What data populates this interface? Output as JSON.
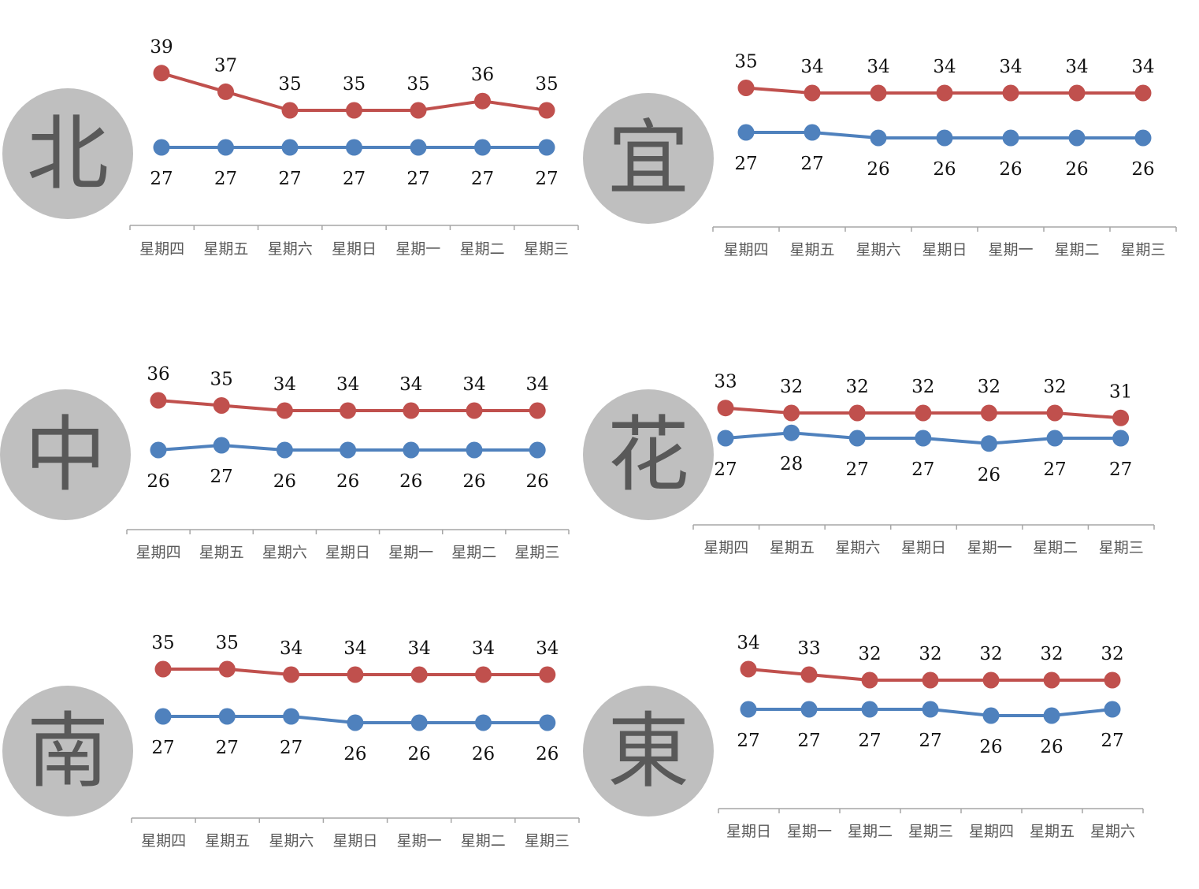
{
  "colors": {
    "high": "#c0504d",
    "low": "#4f81bd",
    "axis": "#a6a6a6",
    "badge": "#bfbfbf",
    "badge_text": "#595959"
  },
  "chart_data": [
    {
      "type": "line",
      "region": "北",
      "categories": [
        "星期四",
        "星期五",
        "星期六",
        "星期日",
        "星期一",
        "星期二",
        "星期三"
      ],
      "series": [
        {
          "values": [
            39,
            37,
            35,
            35,
            35,
            36,
            35
          ]
        },
        {
          "values": [
            27,
            27,
            27,
            27,
            27,
            27,
            27
          ]
        }
      ]
    },
    {
      "type": "line",
      "region": "宜",
      "categories": [
        "星期四",
        "星期五",
        "星期六",
        "星期日",
        "星期一",
        "星期二",
        "星期三"
      ],
      "series": [
        {
          "values": [
            35,
            34,
            34,
            34,
            34,
            34,
            34
          ]
        },
        {
          "values": [
            27,
            27,
            26,
            26,
            26,
            26,
            26
          ]
        }
      ]
    },
    {
      "type": "line",
      "region": "中",
      "categories": [
        "星期四",
        "星期五",
        "星期六",
        "星期日",
        "星期一",
        "星期二",
        "星期三"
      ],
      "series": [
        {
          "values": [
            36,
            35,
            34,
            34,
            34,
            34,
            34
          ]
        },
        {
          "values": [
            26,
            27,
            26,
            26,
            26,
            26,
            26
          ]
        }
      ]
    },
    {
      "type": "line",
      "region": "花",
      "categories": [
        "星期四",
        "星期五",
        "星期六",
        "星期日",
        "星期一",
        "星期二",
        "星期三"
      ],
      "series": [
        {
          "values": [
            33,
            32,
            32,
            32,
            32,
            32,
            31
          ]
        },
        {
          "values": [
            27,
            28,
            27,
            27,
            26,
            27,
            27
          ]
        }
      ]
    },
    {
      "type": "line",
      "region": "南",
      "categories": [
        "星期四",
        "星期五",
        "星期六",
        "星期日",
        "星期一",
        "星期二",
        "星期三"
      ],
      "series": [
        {
          "values": [
            35,
            35,
            34,
            34,
            34,
            34,
            34
          ]
        },
        {
          "values": [
            27,
            27,
            27,
            26,
            26,
            26,
            26
          ]
        }
      ]
    },
    {
      "type": "line",
      "region": "東",
      "categories": [
        "星期日",
        "星期一",
        "星期二",
        "星期三",
        "星期四",
        "星期五",
        "星期六"
      ],
      "series": [
        {
          "values": [
            34,
            33,
            32,
            32,
            32,
            32,
            32
          ]
        },
        {
          "values": [
            27,
            27,
            27,
            27,
            26,
            26,
            27
          ]
        }
      ]
    }
  ]
}
